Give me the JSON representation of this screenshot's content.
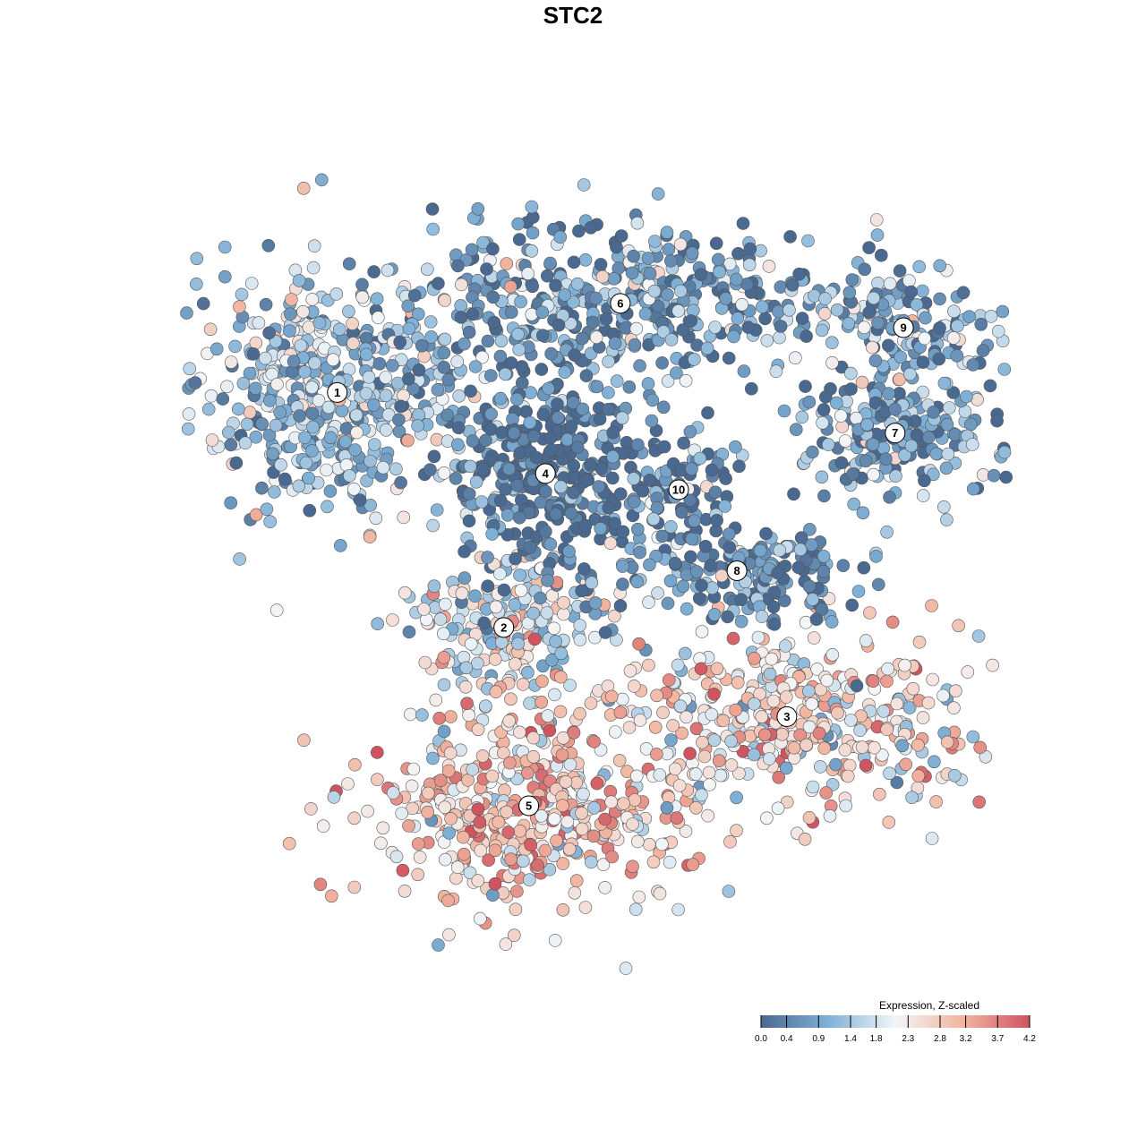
{
  "chart_data": {
    "type": "scatter",
    "title": "STC2",
    "xlabel": "",
    "ylabel": "",
    "grid": false,
    "legend": {
      "title": "Expression, Z-scaled",
      "placement": "bottom-right",
      "ticks": [
        "0.0",
        "0.4",
        "0.9",
        "1.4",
        "1.8",
        "2.3",
        "2.8",
        "3.2",
        "3.7",
        "4.2"
      ],
      "range": [
        0.0,
        4.2
      ]
    },
    "colors": {
      "low": "#4a6990",
      "mid_low": "#7fb0d6",
      "mid": "#f3f6f8",
      "mid_high": "#f2b5a0",
      "high": "#cf5460",
      "point_stroke": "#555555"
    },
    "clusters": [
      {
        "label": "1",
        "x": 0.19,
        "y": 0.72,
        "expression": 1.3
      },
      {
        "label": "2",
        "x": 0.39,
        "y": 0.43,
        "expression": 1.8
      },
      {
        "label": "3",
        "x": 0.73,
        "y": 0.32,
        "expression": 2.5
      },
      {
        "label": "4",
        "x": 0.44,
        "y": 0.62,
        "expression": 0.2
      },
      {
        "label": "5",
        "x": 0.42,
        "y": 0.21,
        "expression": 2.7
      },
      {
        "label": "6",
        "x": 0.53,
        "y": 0.83,
        "expression": 0.7
      },
      {
        "label": "7",
        "x": 0.86,
        "y": 0.67,
        "expression": 0.8
      },
      {
        "label": "8",
        "x": 0.67,
        "y": 0.5,
        "expression": 0.5
      },
      {
        "label": "9",
        "x": 0.87,
        "y": 0.8,
        "expression": 1.1
      },
      {
        "label": "10",
        "x": 0.6,
        "y": 0.6,
        "expression": 0.6
      }
    ]
  }
}
